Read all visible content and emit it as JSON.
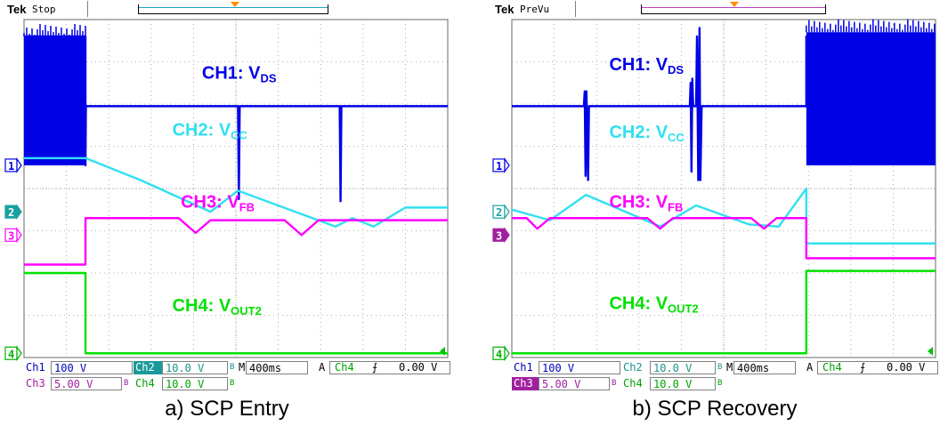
{
  "chart_data": [
    {
      "type": "line",
      "caption": "a) SCP Entry",
      "brand": "Tek",
      "state": "Stop",
      "record_color": "#20a0c0",
      "grid": "on",
      "divisions": {
        "x": 10,
        "y": 8
      },
      "series": [
        {
          "name": "CH1",
          "label": "CH1: V",
          "sub": "DS",
          "color": "#0000e6",
          "points": [
            [
              0,
              7.6
            ],
            [
              0.35,
              7.6
            ],
            [
              1.45,
              7.6
            ],
            [
              1.45,
              4.55
            ],
            [
              1.46,
              5.95
            ],
            [
              2.5,
              5.95
            ],
            [
              5.0,
              5.95
            ],
            [
              5.05,
              5.95
            ],
            [
              5.07,
              3.75
            ],
            [
              5.09,
              5.95
            ],
            [
              7.42,
              5.95
            ],
            [
              7.45,
              5.95
            ],
            [
              7.47,
              3.7
            ],
            [
              7.49,
              5.95
            ],
            [
              10,
              5.95
            ]
          ],
          "burst": {
            "x_start": 0.0,
            "x_end": 1.45,
            "high": 7.6,
            "low": 4.55
          }
        },
        {
          "name": "CH2",
          "label": "CH2: V",
          "sub": "CC",
          "color": "#30e0f0",
          "points": [
            [
              0,
              4.72
            ],
            [
              1.45,
              4.72
            ],
            [
              2.75,
              4.2
            ],
            [
              4.4,
              3.45
            ],
            [
              5.05,
              3.95
            ],
            [
              6.4,
              3.45
            ],
            [
              7.35,
              3.1
            ],
            [
              7.75,
              3.3
            ],
            [
              8.25,
              3.1
            ],
            [
              9.0,
              3.55
            ],
            [
              10,
              3.55
            ]
          ]
        },
        {
          "name": "CH3",
          "label": "CH3: V",
          "sub": "FB",
          "color": "#ff00ff",
          "points": [
            [
              0,
              2.2
            ],
            [
              1.45,
              2.2
            ],
            [
              1.45,
              3.3
            ],
            [
              3.65,
              3.3
            ],
            [
              4.05,
              2.95
            ],
            [
              4.4,
              3.25
            ],
            [
              6.15,
              3.25
            ],
            [
              6.55,
              2.9
            ],
            [
              6.95,
              3.25
            ],
            [
              10,
              3.25
            ]
          ]
        },
        {
          "name": "CH4",
          "label": "CH4: V",
          "sub": "OUT2",
          "color": "#00e000",
          "points": [
            [
              0,
              2.0
            ],
            [
              1.45,
              2.0
            ],
            [
              1.45,
              0.1
            ],
            [
              10,
              0.1
            ]
          ]
        }
      ],
      "markers": [
        {
          "text": "1",
          "y": 4.55,
          "color": "#0000e6",
          "filled": false
        },
        {
          "text": "2",
          "y": 3.45,
          "color": "#1aa0a0",
          "filled": true
        },
        {
          "text": "3",
          "y": 2.9,
          "color": "#ff00ff",
          "filled": false
        },
        {
          "text": "4",
          "y": 0.1,
          "color": "#00b000",
          "filled": false
        }
      ],
      "readout": {
        "ch1": "Ch1",
        "ch1_scale": "100 V",
        "ch2": "Ch2",
        "ch2_scale": "10.0 V",
        "bw2": "B",
        "ch3": "Ch3",
        "ch3_scale": "5.00 V",
        "bw3": "B",
        "ch4": "Ch4",
        "ch4_scale": "10.0 V",
        "bw4": "B",
        "m": "M",
        "timebase": "400ms",
        "a": "A",
        "trig_src": "Ch4",
        "trig_slope": "⨍",
        "trig_level": "0.00 V"
      },
      "ch2_highlight": true,
      "ch3_highlight": false
    },
    {
      "type": "line",
      "caption": "b) SCP Recovery",
      "brand": "Tek",
      "state": "PreVu",
      "record_color": "#c040c0",
      "grid": "on",
      "divisions": {
        "x": 10,
        "y": 8
      },
      "series": [
        {
          "name": "CH1",
          "label": "CH1: V",
          "sub": "DS",
          "color": "#0000e6",
          "points": [
            [
              0,
              5.95
            ],
            [
              1.7,
              5.95
            ],
            [
              1.72,
              6.3
            ],
            [
              1.74,
              4.3
            ],
            [
              1.76,
              6.3
            ],
            [
              1.8,
              4.2
            ],
            [
              1.82,
              5.95
            ],
            [
              4.2,
              5.95
            ],
            [
              4.22,
              6.5
            ],
            [
              4.24,
              4.4
            ],
            [
              4.26,
              6.6
            ],
            [
              4.28,
              5.95
            ],
            [
              4.35,
              5.95
            ],
            [
              4.37,
              7.6
            ],
            [
              4.4,
              4.2
            ],
            [
              4.43,
              7.8
            ],
            [
              4.45,
              4.2
            ],
            [
              4.48,
              5.95
            ],
            [
              6.95,
              5.95
            ],
            [
              6.95,
              7.6
            ],
            [
              10,
              7.6
            ]
          ],
          "burst": {
            "x_start": 6.95,
            "x_end": 10.0,
            "high": 7.7,
            "low": 4.55
          }
        },
        {
          "name": "CH2",
          "label": "CH2: V",
          "sub": "CC",
          "color": "#30e0f0",
          "points": [
            [
              0,
              3.5
            ],
            [
              0.9,
              3.25
            ],
            [
              1.75,
              3.85
            ],
            [
              3.5,
              3.1
            ],
            [
              4.35,
              3.6
            ],
            [
              5.6,
              3.15
            ],
            [
              6.3,
              3.1
            ],
            [
              6.95,
              4.0
            ],
            [
              6.95,
              2.7
            ],
            [
              10,
              2.7
            ]
          ]
        },
        {
          "name": "CH3",
          "label": "CH3: V",
          "sub": "FB",
          "color": "#ff00ff",
          "points": [
            [
              0,
              3.3
            ],
            [
              0.35,
              3.3
            ],
            [
              0.6,
              3.05
            ],
            [
              0.9,
              3.3
            ],
            [
              3.2,
              3.3
            ],
            [
              3.5,
              3.05
            ],
            [
              3.8,
              3.3
            ],
            [
              5.65,
              3.3
            ],
            [
              5.95,
              3.05
            ],
            [
              6.25,
              3.3
            ],
            [
              6.95,
              3.3
            ],
            [
              6.95,
              2.35
            ],
            [
              10,
              2.35
            ]
          ]
        },
        {
          "name": "CH4",
          "label": "CH4: V",
          "sub": "OUT2",
          "color": "#00e000",
          "points": [
            [
              0,
              0.1
            ],
            [
              6.95,
              0.1
            ],
            [
              6.95,
              2.05
            ],
            [
              10,
              2.05
            ]
          ]
        }
      ],
      "markers": [
        {
          "text": "1",
          "y": 4.55,
          "color": "#0000e6",
          "filled": false
        },
        {
          "text": "2",
          "y": 3.45,
          "color": "#1aa0a0",
          "filled": false
        },
        {
          "text": "3",
          "y": 2.9,
          "color": "#a020a0",
          "filled": true
        },
        {
          "text": "4",
          "y": 0.1,
          "color": "#00b000",
          "filled": false
        }
      ],
      "readout": {
        "ch1": "Ch1",
        "ch1_scale": "100 V",
        "ch2": "Ch2",
        "ch2_scale": "10.0 V",
        "bw2": "B",
        "ch3": "Ch3",
        "ch3_scale": "5.00 V",
        "bw3": "B",
        "ch4": "Ch4",
        "ch4_scale": "10.0 V",
        "bw4": "B",
        "m": "M",
        "timebase": "400ms",
        "a": "A",
        "trig_src": "Ch4",
        "trig_slope": "⨍",
        "trig_level": "0.00 V"
      },
      "ch2_highlight": false,
      "ch3_highlight": true
    }
  ]
}
